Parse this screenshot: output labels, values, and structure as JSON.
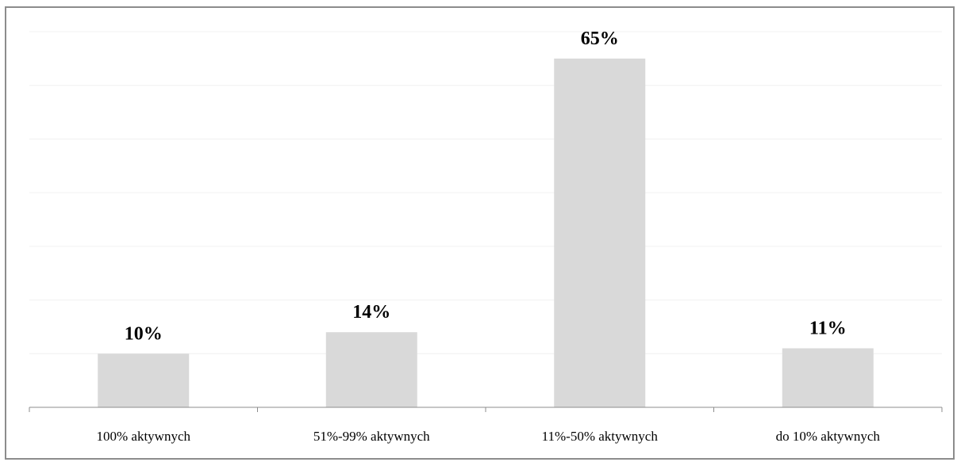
{
  "chart_data": {
    "type": "bar",
    "categories": [
      "100% aktywnych",
      "51%-99% aktywnych",
      "11%-50% aktywnych",
      "do 10% aktywnych"
    ],
    "values": [
      10,
      14,
      65,
      11
    ],
    "value_labels": [
      "10%",
      "14%",
      "65%",
      "11%"
    ],
    "ylim": [
      0,
      70
    ],
    "grid": true,
    "bar_color": "#d9d9d9",
    "gridline_color": "#f0f0f0"
  }
}
